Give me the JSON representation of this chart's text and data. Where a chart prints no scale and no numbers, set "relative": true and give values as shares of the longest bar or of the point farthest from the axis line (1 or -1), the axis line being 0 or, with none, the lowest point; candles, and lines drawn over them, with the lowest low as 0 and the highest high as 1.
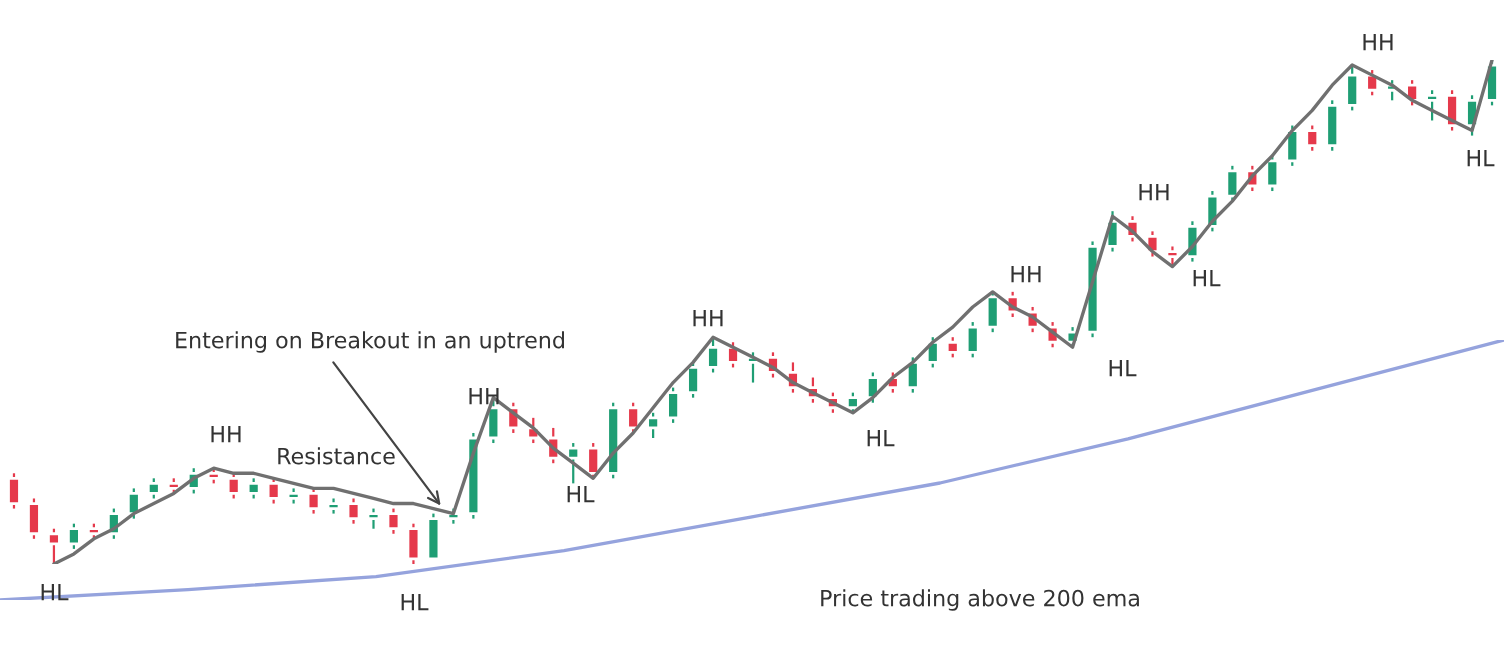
{
  "chart_data": [
    {
      "type": "candlestick",
      "relative": true,
      "categories": [
        null,
        null,
        null,
        null,
        null,
        null,
        null,
        null,
        null,
        null,
        null,
        null,
        null,
        null,
        null,
        null,
        null,
        null,
        null,
        null,
        null,
        null,
        null,
        null,
        null,
        null,
        null,
        null,
        null,
        null,
        null,
        null,
        null,
        null,
        null,
        null,
        null,
        null,
        null,
        null,
        null,
        null,
        null,
        null,
        null,
        null,
        null,
        null,
        null,
        null,
        null,
        null,
        null,
        null,
        null,
        null,
        null,
        null,
        null,
        null,
        null,
        null,
        null,
        null,
        null,
        null,
        null,
        null,
        null,
        null,
        null,
        null,
        null,
        null,
        null
      ],
      "ohlc": [
        [
          0.17,
          0.18,
          0.11,
          0.12
        ],
        [
          0.12,
          0.13,
          0.05,
          0.06
        ],
        [
          0.06,
          0.07,
          0.0,
          0.04
        ],
        [
          0.04,
          0.08,
          0.03,
          0.07
        ],
        [
          0.07,
          0.08,
          0.05,
          0.06
        ],
        [
          0.06,
          0.11,
          0.05,
          0.1
        ],
        [
          0.1,
          0.15,
          0.09,
          0.14
        ],
        [
          0.14,
          0.17,
          0.13,
          0.16
        ],
        [
          0.16,
          0.17,
          0.14,
          0.15
        ],
        [
          0.15,
          0.19,
          0.14,
          0.18
        ],
        [
          0.18,
          0.19,
          0.16,
          0.17
        ],
        [
          0.17,
          0.18,
          0.13,
          0.14
        ],
        [
          0.14,
          0.17,
          0.13,
          0.16
        ],
        [
          0.16,
          0.17,
          0.12,
          0.13
        ],
        [
          0.13,
          0.15,
          0.12,
          0.14
        ],
        [
          0.14,
          0.15,
          0.1,
          0.11
        ],
        [
          0.11,
          0.13,
          0.1,
          0.12
        ],
        [
          0.12,
          0.13,
          0.08,
          0.09
        ],
        [
          0.09,
          0.11,
          0.07,
          0.1
        ],
        [
          0.1,
          0.11,
          0.06,
          0.07
        ],
        [
          0.07,
          0.08,
          0.0,
          0.01
        ],
        [
          0.01,
          0.1,
          0.01,
          0.09
        ],
        [
          0.09,
          0.11,
          0.08,
          0.1
        ],
        [
          0.1,
          0.26,
          0.09,
          0.25
        ],
        [
          0.25,
          0.33,
          0.24,
          0.31
        ],
        [
          0.31,
          0.32,
          0.26,
          0.27
        ],
        [
          0.27,
          0.29,
          0.24,
          0.25
        ],
        [
          0.25,
          0.27,
          0.2,
          0.21
        ],
        [
          0.21,
          0.24,
          0.16,
          0.23
        ],
        [
          0.23,
          0.24,
          0.17,
          0.18
        ],
        [
          0.18,
          0.32,
          0.17,
          0.31
        ],
        [
          0.31,
          0.32,
          0.26,
          0.27
        ],
        [
          0.27,
          0.3,
          0.25,
          0.29
        ],
        [
          0.29,
          0.35,
          0.28,
          0.34
        ],
        [
          0.34,
          0.4,
          0.33,
          0.39
        ],
        [
          0.39,
          0.45,
          0.38,
          0.43
        ],
        [
          0.43,
          0.44,
          0.39,
          0.4
        ],
        [
          0.4,
          0.42,
          0.36,
          0.41
        ],
        [
          0.41,
          0.42,
          0.37,
          0.38
        ],
        [
          0.38,
          0.4,
          0.34,
          0.35
        ],
        [
          0.35,
          0.37,
          0.32,
          0.33
        ],
        [
          0.33,
          0.34,
          0.3,
          0.31
        ],
        [
          0.31,
          0.34,
          0.3,
          0.33
        ],
        [
          0.33,
          0.38,
          0.32,
          0.37
        ],
        [
          0.37,
          0.38,
          0.34,
          0.35
        ],
        [
          0.35,
          0.41,
          0.34,
          0.4
        ],
        [
          0.4,
          0.45,
          0.39,
          0.44
        ],
        [
          0.44,
          0.45,
          0.41,
          0.42
        ],
        [
          0.42,
          0.48,
          0.41,
          0.47
        ],
        [
          0.47,
          0.54,
          0.46,
          0.53
        ],
        [
          0.53,
          0.54,
          0.49,
          0.5
        ],
        [
          0.5,
          0.51,
          0.46,
          0.47
        ],
        [
          0.47,
          0.48,
          0.43,
          0.44
        ],
        [
          0.44,
          0.47,
          0.43,
          0.46
        ],
        [
          0.46,
          0.64,
          0.45,
          0.63
        ],
        [
          0.63,
          0.7,
          0.62,
          0.68
        ],
        [
          0.68,
          0.69,
          0.64,
          0.65
        ],
        [
          0.65,
          0.66,
          0.61,
          0.62
        ],
        [
          0.62,
          0.63,
          0.59,
          0.61
        ],
        [
          0.61,
          0.68,
          0.6,
          0.67
        ],
        [
          0.67,
          0.74,
          0.66,
          0.73
        ],
        [
          0.73,
          0.79,
          0.72,
          0.78
        ],
        [
          0.78,
          0.79,
          0.74,
          0.75
        ],
        [
          0.75,
          0.81,
          0.74,
          0.8
        ],
        [
          0.8,
          0.87,
          0.79,
          0.86
        ],
        [
          0.86,
          0.87,
          0.82,
          0.83
        ],
        [
          0.83,
          0.92,
          0.82,
          0.91
        ],
        [
          0.91,
          0.99,
          0.9,
          0.97
        ],
        [
          0.97,
          0.98,
          0.93,
          0.94
        ],
        [
          0.94,
          0.96,
          0.92,
          0.95
        ],
        [
          0.95,
          0.96,
          0.91,
          0.92
        ],
        [
          0.92,
          0.94,
          0.88,
          0.93
        ],
        [
          0.93,
          0.94,
          0.86,
          0.87
        ],
        [
          0.87,
          0.93,
          0.85,
          0.92
        ],
        [
          0.92,
          1.0,
          0.91,
          0.99
        ]
      ],
      "colors": [
        "#e5394b",
        "#e5394b",
        "#e5394b",
        "#1f9e74",
        "#e5394b",
        "#1f9e74",
        "#1f9e74",
        "#1f9e74",
        "#e5394b",
        "#1f9e74",
        "#e5394b",
        "#e5394b",
        "#1f9e74",
        "#e5394b",
        "#1f9e74",
        "#e5394b",
        "#1f9e74",
        "#e5394b",
        "#1f9e74",
        "#e5394b",
        "#e5394b",
        "#1f9e74",
        "#1f9e74",
        "#1f9e74",
        "#1f9e74",
        "#e5394b",
        "#e5394b",
        "#e5394b",
        "#1f9e74",
        "#e5394b",
        "#1f9e74",
        "#e5394b",
        "#1f9e74",
        "#1f9e74",
        "#1f9e74",
        "#1f9e74",
        "#e5394b",
        "#1f9e74",
        "#e5394b",
        "#e5394b",
        "#e5394b",
        "#e5394b",
        "#1f9e74",
        "#1f9e74",
        "#e5394b",
        "#1f9e74",
        "#1f9e74",
        "#e5394b",
        "#1f9e74",
        "#1f9e74",
        "#e5394b",
        "#e5394b",
        "#e5394b",
        "#1f9e74",
        "#1f9e74",
        "#1f9e74",
        "#e5394b",
        "#e5394b",
        "#e5394b",
        "#1f9e74",
        "#1f9e74",
        "#1f9e74",
        "#e5394b",
        "#1f9e74",
        "#1f9e74",
        "#e5394b",
        "#1f9e74",
        "#1f9e74",
        "#e5394b",
        "#1f9e74",
        "#e5394b",
        "#1f9e74",
        "#e5394b",
        "#1f9e74",
        "#1f9e74"
      ],
      "annotations": [
        "Entering on Breakout in an uptrend",
        "HL",
        "HH",
        "Resistance",
        "HL",
        "HH",
        "HL",
        "HH",
        "HL",
        "HH",
        "HL",
        "HH",
        "HL",
        "HH",
        "HL",
        "Price trading above 200 ema"
      ]
    },
    {
      "type": "line",
      "relative": true,
      "categories": [
        null,
        null,
        null,
        null,
        null,
        null,
        null,
        null,
        null,
        null,
        null,
        null,
        null,
        null,
        null,
        null,
        null,
        null,
        null,
        null,
        null,
        null,
        null,
        null,
        null,
        null,
        null,
        null,
        null,
        null,
        null,
        null,
        null,
        null,
        null,
        null,
        null,
        null,
        null,
        null,
        null,
        null,
        null,
        null,
        null,
        null,
        null,
        null,
        null,
        null,
        null,
        null,
        null,
        null,
        null,
        null,
        null,
        null,
        null,
        null,
        null,
        null,
        null,
        null,
        null,
        null,
        null,
        null,
        null,
        null,
        null,
        null,
        null,
        null,
        null
      ],
      "series": [
        {
          "color": "#707070",
          "values": [
            null,
            null,
            0.0,
            0.02,
            0.05,
            0.07,
            0.1,
            0.12,
            0.14,
            0.17,
            0.19,
            0.18,
            0.18,
            0.17,
            0.16,
            0.15,
            0.15,
            0.14,
            0.13,
            0.12,
            0.12,
            0.11,
            0.1,
            0.22,
            0.33,
            0.3,
            0.27,
            0.23,
            0.2,
            0.17,
            0.22,
            0.26,
            0.31,
            0.36,
            0.4,
            0.45,
            0.43,
            0.41,
            0.39,
            0.36,
            0.34,
            0.32,
            0.3,
            0.33,
            0.37,
            0.4,
            0.44,
            0.47,
            0.51,
            0.54,
            0.51,
            0.49,
            0.46,
            0.43,
            0.56,
            0.69,
            0.66,
            0.62,
            0.59,
            0.63,
            0.68,
            0.72,
            0.77,
            0.81,
            0.86,
            0.9,
            0.95,
            0.99,
            0.97,
            0.95,
            0.92,
            0.9,
            0.88,
            0.86,
            1.0
          ]
        }
      ]
    },
    {
      "type": "line",
      "relative": true,
      "categories": [
        null,
        null,
        null,
        null,
        null,
        null,
        null,
        null,
        null
      ],
      "series": [
        {
          "color": "#95a3dd",
          "values": [
            0,
            0.04,
            0.09,
            0.19,
            0.32,
            0.45,
            0.62,
            0.81,
            1.0
          ]
        }
      ]
    }
  ]
}
